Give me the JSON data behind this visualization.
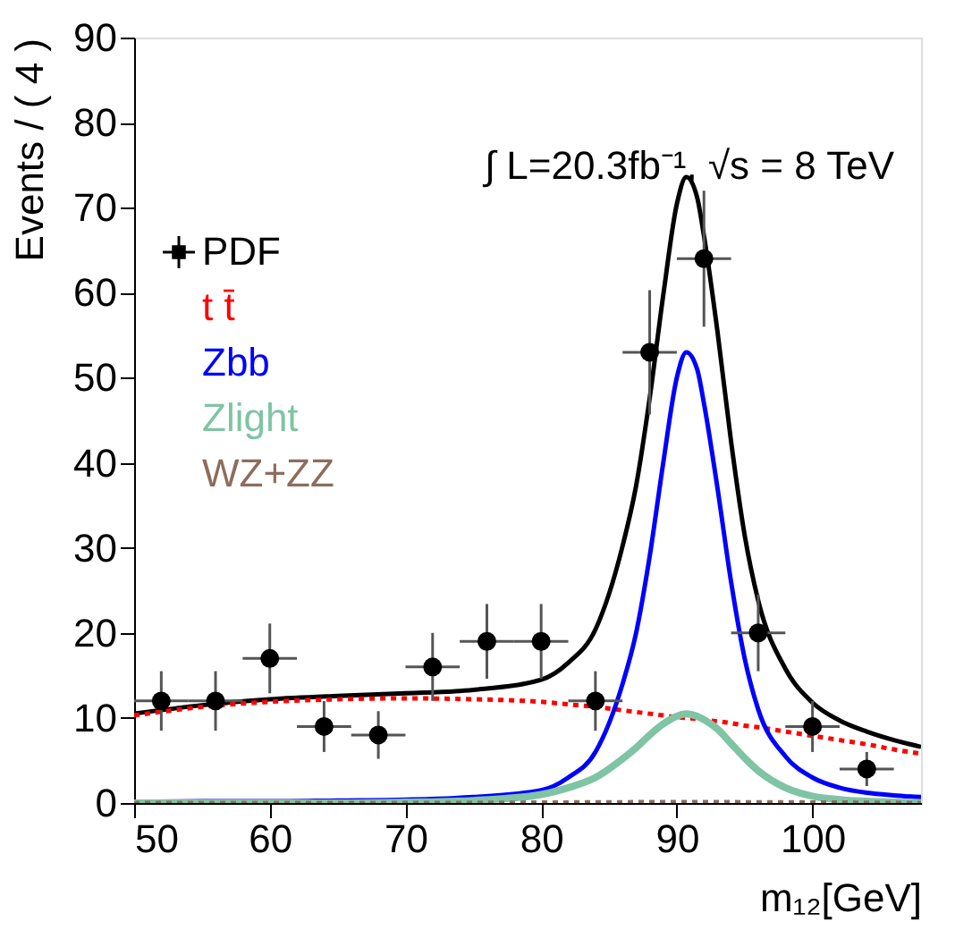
{
  "chart_data": {
    "type": "line",
    "xlabel": "m₁₂[GeV]",
    "ylabel": "Events / ( 4 )",
    "annotations": [
      "∫ L=20.3fb⁻¹, √s = 8 TeV"
    ],
    "xlim": [
      50,
      108
    ],
    "xticks": [
      50,
      60,
      70,
      80,
      90,
      100
    ],
    "ylim": [
      0,
      90
    ],
    "yticks": [
      0,
      10,
      20,
      30,
      40,
      50,
      60,
      70,
      80,
      90
    ],
    "grid": false,
    "legend": "top left",
    "series": [
      {
        "name": "PDF",
        "type": "scatter",
        "marker": "circle",
        "color": "#000000",
        "x": [
          52,
          56,
          60,
          64,
          68,
          72,
          76,
          80,
          84,
          88,
          92,
          96,
          100,
          104
        ],
        "values": [
          12,
          12,
          17,
          9,
          8,
          16,
          19,
          19,
          12,
          53,
          64,
          20,
          9,
          4
        ],
        "errors": [
          3.5,
          3.5,
          4.1,
          3,
          2.8,
          4,
          4.4,
          4.4,
          3.5,
          7.3,
          8,
          4.5,
          3,
          2
        ],
        "xerrors": [
          2,
          2,
          2,
          2,
          2,
          2,
          2,
          2,
          2,
          2,
          2,
          2,
          2,
          2
        ]
      },
      {
        "color": "#000000",
        "line_style": "solid",
        "x": [
          50,
          55,
          60,
          65,
          70,
          75,
          80,
          82,
          84,
          86,
          87,
          88,
          89,
          90,
          90.7,
          91.5,
          92,
          93,
          94,
          95,
          96,
          98,
          100,
          102,
          104,
          106,
          108
        ],
        "values": [
          10.5,
          11.5,
          12.2,
          12.6,
          12.9,
          13.3,
          14.5,
          16.5,
          20.4,
          30.2,
          37.3,
          47.6,
          59.7,
          70.4,
          73.6,
          71.2,
          66.7,
          55.4,
          42.5,
          31.5,
          23.8,
          15.8,
          11.8,
          9.7,
          8.4,
          7.4,
          6.6
        ]
      },
      {
        "name": "t t̄",
        "color": "#ff0000",
        "line_style": "dotted",
        "x": [
          50,
          55,
          60,
          65,
          70,
          75,
          80,
          82,
          84,
          86,
          87,
          88,
          89,
          90,
          90.7,
          91.5,
          92,
          93,
          94,
          95,
          96,
          98,
          100,
          102,
          104,
          106,
          108
        ],
        "values": [
          10.3,
          11.3,
          11.9,
          12.2,
          12.3,
          12.2,
          11.9,
          11.6,
          11.3,
          10.9,
          10.7,
          10.5,
          10.3,
          10.1,
          10,
          9.9,
          9.8,
          9.6,
          9.4,
          9.1,
          8.9,
          8.4,
          7.9,
          7.4,
          6.9,
          6.3,
          5.8
        ]
      },
      {
        "name": "Zbb",
        "color": "#0000ff",
        "line_style": "solid",
        "x": [
          50,
          55,
          60,
          65,
          70,
          75,
          80,
          82,
          84,
          86,
          87,
          88,
          89,
          90,
          90.7,
          91.5,
          92,
          93,
          94,
          95,
          96,
          98,
          100,
          102,
          104,
          106,
          108
        ],
        "values": [
          0.1,
          0.2,
          0.2,
          0.3,
          0.4,
          0.7,
          1.5,
          3,
          6,
          14,
          20,
          29,
          40,
          50,
          53,
          51,
          47,
          37,
          26,
          17,
          11,
          5.5,
          3,
          1.8,
          1.2,
          0.9,
          0.7
        ]
      },
      {
        "name": "Zlight",
        "color": "#7fc4a4",
        "line_style": "solid",
        "x": [
          50,
          55,
          60,
          65,
          70,
          75,
          80,
          82,
          84,
          86,
          87,
          88,
          89,
          90,
          90.7,
          91.5,
          92,
          93,
          94,
          95,
          96,
          98,
          100,
          102,
          104,
          106,
          108
        ],
        "values": [
          0,
          0,
          0,
          0,
          0.1,
          0.3,
          1,
          1.8,
          3,
          5.2,
          6.5,
          8,
          9.3,
          10.2,
          10.5,
          10.2,
          9.8,
          8.7,
          7,
          5.3,
          3.8,
          1.8,
          0.8,
          0.4,
          0.2,
          0.1,
          0
        ]
      },
      {
        "name": "WZ+ZZ",
        "color": "#8c6d5c",
        "line_style": "dotted",
        "x": [
          50,
          70,
          90,
          108
        ],
        "values": [
          0,
          0,
          0.1,
          0
        ]
      }
    ]
  }
}
